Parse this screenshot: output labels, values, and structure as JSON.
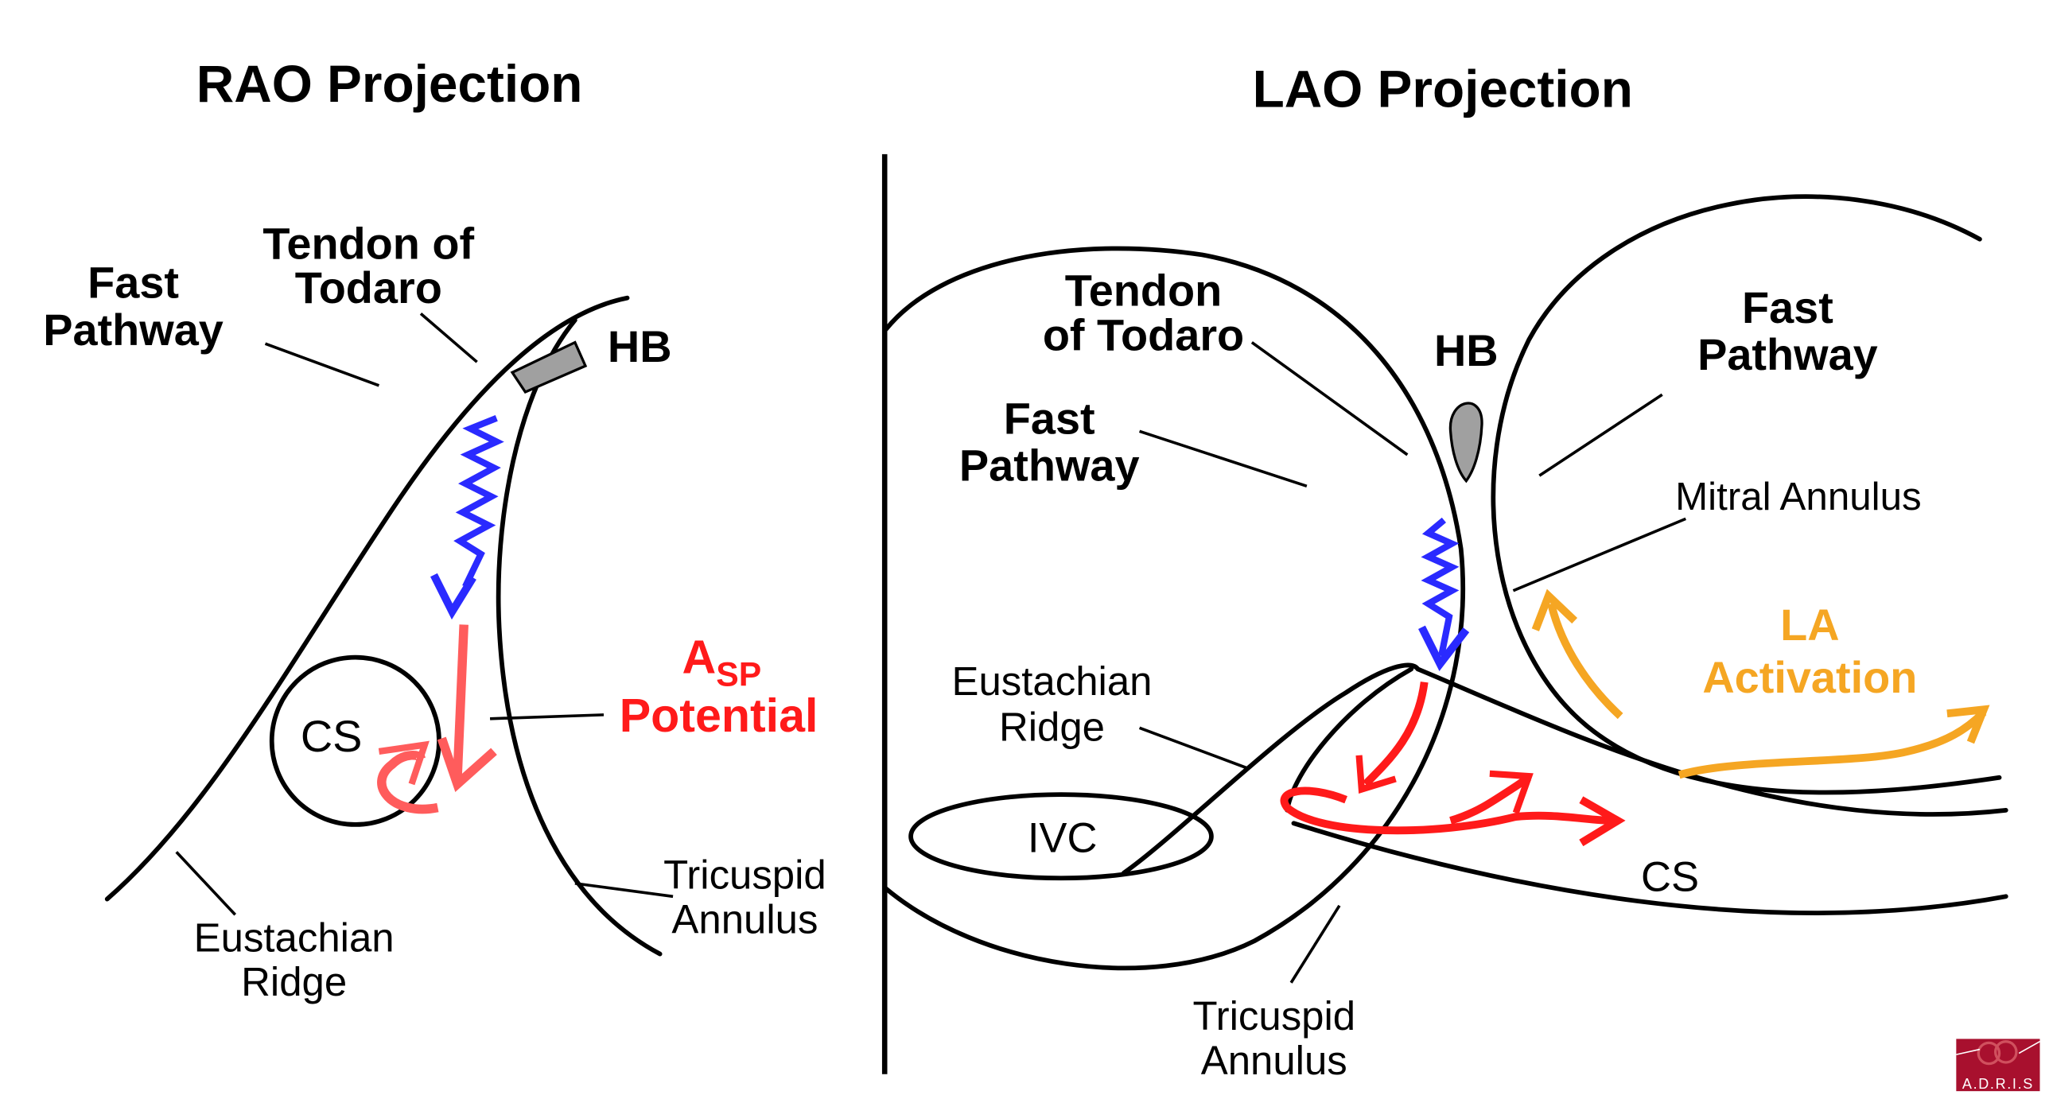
{
  "rao": {
    "title": "RAO Projection",
    "fast_pathway": [
      "Fast",
      "Pathway"
    ],
    "tendon": [
      "Tendon of",
      "Todaro"
    ],
    "hb": "HB",
    "cs": "CS",
    "asp_a": "A",
    "asp_sub": "SP",
    "asp_potential": "Potential",
    "eustachian": [
      "Eustachian",
      "Ridge"
    ],
    "tricuspid": [
      "Tricuspid",
      "Annulus"
    ]
  },
  "lao": {
    "title": "LAO Projection",
    "tendon": [
      "Tendon",
      "of Todaro"
    ],
    "hb": "HB",
    "fast_pathway_left": [
      "Fast",
      "Pathway"
    ],
    "fast_pathway_right": [
      "Fast",
      "Pathway"
    ],
    "mitral": "Mitral Annulus",
    "la_activation": [
      "LA",
      "Activation"
    ],
    "eustachian": [
      "Eustachian",
      "Ridge"
    ],
    "ivc": "IVC",
    "cs": "CS",
    "tricuspid": [
      "Tricuspid",
      "Annulus"
    ]
  },
  "logo": {
    "text": "A.D.R.I.S"
  },
  "colors": {
    "red": "#ff1a1a",
    "pink": "#ff5c5c",
    "blue": "#2a2aff",
    "orange": "#f5a623",
    "gray": "#a0a0a0",
    "logo": "#a8102e"
  }
}
